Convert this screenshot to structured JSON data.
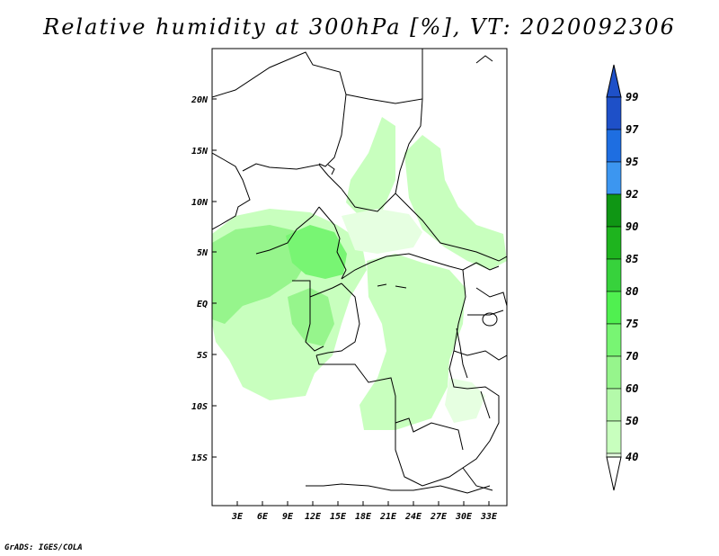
{
  "title": "Relative humidity at 300hPa [%], VT: 2020092306",
  "credit": "GrADS: IGES/COLA",
  "map": {
    "lat_ticks": [
      "20N",
      "15N",
      "10N",
      "5N",
      "EQ",
      "5S",
      "10S",
      "15S"
    ],
    "lon_ticks": [
      "3E",
      "6E",
      "9E",
      "12E",
      "15E",
      "18E",
      "21E",
      "24E",
      "27E",
      "30E",
      "33E"
    ]
  },
  "colorbar": {
    "labels": [
      "99",
      "97",
      "95",
      "92",
      "90",
      "85",
      "80",
      "75",
      "70",
      "60",
      "50",
      "40"
    ],
    "colors": [
      "#1e50c8",
      "#1e6ee1",
      "#3c96f0",
      "#0f9614",
      "#1eb41e",
      "#37d23c",
      "#50f050",
      "#78f573",
      "#96f58c",
      "#b4faaa",
      "#c8ffbe",
      "#e6ffe1"
    ]
  }
}
